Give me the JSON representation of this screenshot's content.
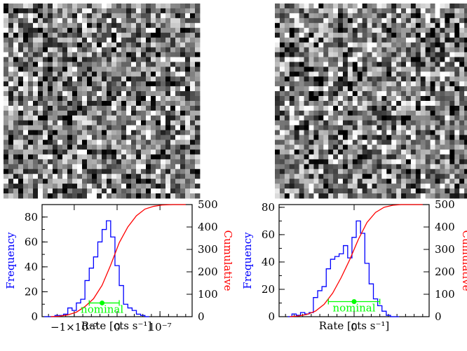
{
  "chart_data": [
    {
      "type": "bar",
      "xlabel": "Rate [cts s⁻¹]",
      "ylabel_left": "Frequency",
      "ylabel_right": "Cumulative",
      "x_ticks": [
        "−1×10⁻⁷",
        "0",
        "10⁻⁷"
      ],
      "x_tick_values": [
        -1e-07,
        0,
        1e-07
      ],
      "xlim": [
        -1.75e-07,
        1.75e-07
      ],
      "ylim_left": [
        0,
        90
      ],
      "ylim_right": [
        0,
        500
      ],
      "y_ticks_left": [
        "0",
        "20",
        "40",
        "60",
        "80"
      ],
      "y_ticks_right": [
        "0",
        "100",
        "200",
        "300",
        "400",
        "500"
      ],
      "grid": false,
      "series": [
        {
          "kind": "histogram",
          "color": "#0000ff",
          "bin_edges": [
            -1.7e-07,
            -1.55e-07,
            -1.45e-07,
            -1.35e-07,
            -1.25e-07,
            -1.15e-07,
            -1.05e-07,
            -9.5e-08,
            -8.5e-08,
            -7.5e-08,
            -6.5e-08,
            -5.5e-08,
            -4.5e-08,
            -3.5e-08,
            -2.5e-08,
            -1.5e-08,
            -5e-09,
            5e-09,
            1.5e-08,
            2.5e-08,
            3.5e-08,
            4.5e-08,
            5.5e-08,
            6.5e-08,
            7.5e-08
          ],
          "counts": [
            0,
            0,
            1,
            1,
            2,
            7,
            5,
            11,
            14,
            29,
            39,
            48,
            60,
            70,
            77,
            64,
            41,
            25,
            10,
            7,
            5,
            2,
            1,
            0
          ]
        },
        {
          "kind": "cumulative",
          "color": "#ff0000",
          "x": [
            -1.55e-07,
            -1.35e-07,
            -1.15e-07,
            -9.5e-08,
            -7.5e-08,
            -5.5e-08,
            -3.5e-08,
            -1.5e-08,
            5e-09,
            2.5e-08,
            4.5e-08,
            6.5e-08,
            8.5e-08,
            1.05e-07,
            1.3e-07,
            1.6e-07
          ],
          "y": [
            0,
            2,
            8,
            20,
            45,
            80,
            140,
            230,
            330,
            400,
            450,
            480,
            492,
            498,
            500,
            500
          ]
        }
      ],
      "nominal": {
        "label": "nominal",
        "color": "#00ff00",
        "value": -3.5e-08,
        "err_low": -6.5e-08,
        "err_high": 5e-09,
        "y_left": 11
      }
    },
    {
      "type": "bar",
      "xlabel": "Rate [cts s⁻¹]",
      "ylabel_left": "Frequency",
      "ylabel_right": "Cumulative",
      "x_ticks": [
        "0"
      ],
      "x_tick_values": [
        0
      ],
      "xlim": [
        -1.75,
        1.75
      ],
      "ylim_left": [
        0,
        82
      ],
      "ylim_right": [
        0,
        500
      ],
      "y_ticks_left": [
        "0",
        "20",
        "40",
        "60",
        "80"
      ],
      "y_ticks_right": [
        "0",
        "100",
        "200",
        "300",
        "400",
        "500"
      ],
      "grid": false,
      "series": [
        {
          "kind": "histogram",
          "color": "#0000ff",
          "bin_edges": [
            -1.55,
            -1.45,
            -1.35,
            -1.25,
            -1.15,
            -1.05,
            -0.95,
            -0.85,
            -0.75,
            -0.65,
            -0.55,
            -0.45,
            -0.35,
            -0.25,
            -0.15,
            -0.05,
            0.05,
            0.15,
            0.25,
            0.35,
            0.45,
            0.55,
            0.65,
            0.75,
            0.85,
            0.95,
            1.05
          ],
          "counts": [
            0,
            2,
            1,
            3,
            2,
            3,
            14,
            19,
            22,
            35,
            42,
            44,
            46,
            52,
            43,
            58,
            70,
            61,
            39,
            24,
            13,
            8,
            4,
            1,
            0,
            0
          ]
        },
        {
          "kind": "cumulative",
          "color": "#ff0000",
          "x": [
            -1.5,
            -1.3,
            -1.1,
            -0.9,
            -0.7,
            -0.5,
            -0.3,
            -0.1,
            0.1,
            0.3,
            0.5,
            0.7,
            0.9,
            1.1,
            1.3,
            1.6
          ],
          "y": [
            0,
            3,
            10,
            25,
            55,
            105,
            175,
            255,
            345,
            420,
            465,
            488,
            497,
            500,
            500,
            500
          ]
        }
      ],
      "nominal": {
        "label": "nominal",
        "color": "#00ff00",
        "value": 0.0,
        "err_low": -0.6,
        "err_high": 0.6,
        "y_left": 11
      }
    }
  ]
}
